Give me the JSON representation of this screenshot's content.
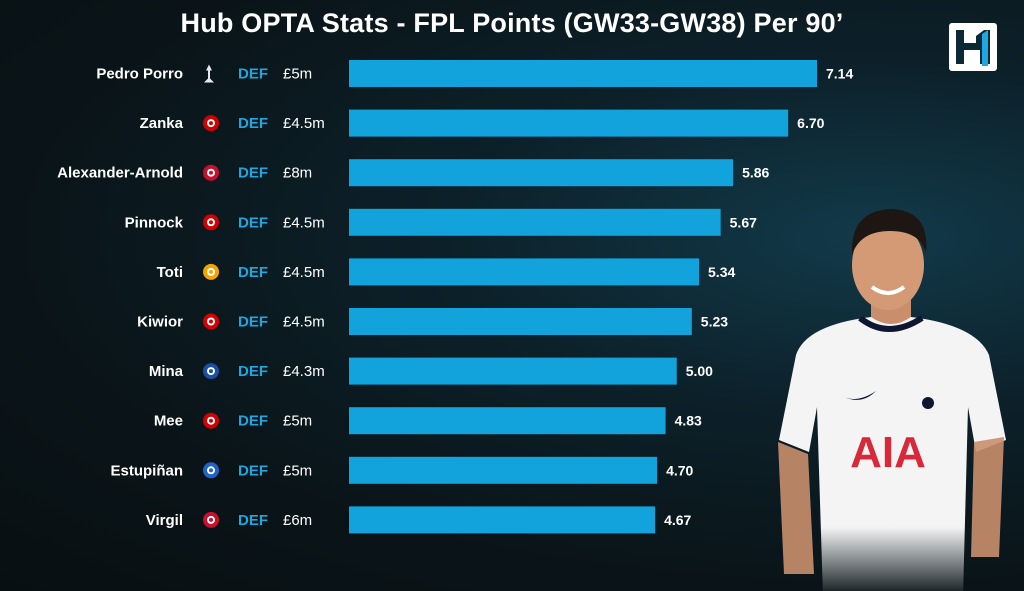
{
  "title": "Hub OPTA Stats - FPL Points (GW33-GW38) Per 90’",
  "colors": {
    "bar": "#12a3dc",
    "position_label": "#1ea7e0",
    "text": "#ffffff"
  },
  "chart_data": {
    "type": "bar",
    "orientation": "horizontal",
    "categories": [
      "Pedro Porro",
      "Zanka",
      "Alexander-Arnold",
      "Pinnock",
      "Toti",
      "Kiwior",
      "Mina",
      "Mee",
      "Estupiñan",
      "Virgil"
    ],
    "values": [
      7.14,
      6.7,
      5.86,
      5.67,
      5.34,
      5.23,
      5.0,
      4.83,
      4.7,
      4.67
    ],
    "value_labels": [
      "7.14",
      "6.70",
      "5.86",
      "5.67",
      "5.34",
      "5.23",
      "5.00",
      "4.83",
      "4.70",
      "4.67"
    ],
    "positions": [
      "DEF",
      "DEF",
      "DEF",
      "DEF",
      "DEF",
      "DEF",
      "DEF",
      "DEF",
      "DEF",
      "DEF"
    ],
    "prices": [
      "£5m",
      "£4.5m",
      "£8m",
      "£4.5m",
      "£4.5m",
      "£4.5m",
      "£4.3m",
      "£5m",
      "£5m",
      "£6m"
    ],
    "clubs": [
      "tottenham",
      "brentford",
      "liverpool",
      "brentford",
      "wolves",
      "arsenal",
      "everton",
      "brentford",
      "brighton",
      "liverpool"
    ],
    "title": "Hub OPTA Stats - FPL Points (GW33-GW38) Per 90’",
    "xlabel": "",
    "ylabel": "",
    "grid": false,
    "legend": "none"
  },
  "player_shirt_sponsor": "AIA"
}
